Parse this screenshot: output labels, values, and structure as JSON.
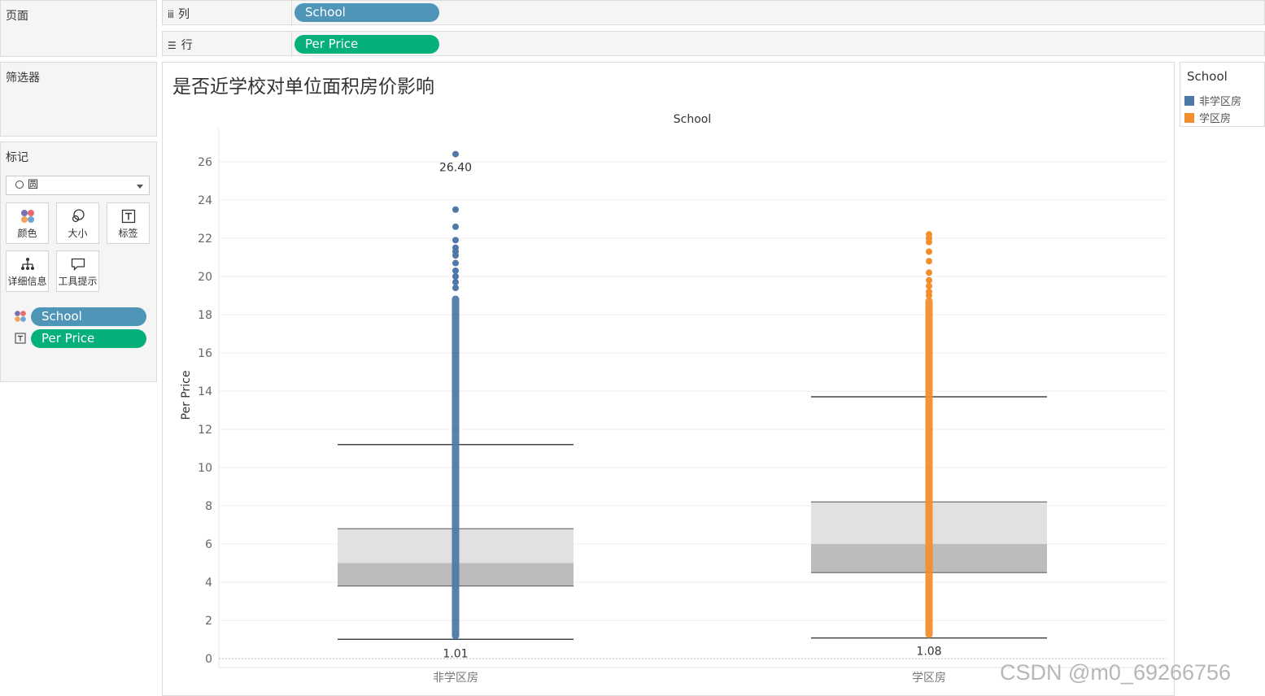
{
  "shelves": {
    "pages_label": "页面",
    "columns_label": "列",
    "columns_pill": "School",
    "rows_label": "行",
    "rows_pill": "Per Price",
    "filters_label": "筛选器"
  },
  "marks": {
    "title": "标记",
    "mark_type": "圆",
    "buttons": {
      "color": "颜色",
      "size": "大小",
      "label": "标签",
      "detail": "详细信息",
      "tooltip": "工具提示"
    },
    "fields": [
      "School",
      "Per Price"
    ]
  },
  "colors": {
    "non_school": "#4e79a7",
    "school": "#f28e2b",
    "pill_blue": "#4f95b7",
    "pill_green": "#06b07a"
  },
  "legend": {
    "title": "School",
    "items": [
      "非学区房",
      "学区房"
    ]
  },
  "chart_data": {
    "type": "scatter",
    "title": "是否近学校对单位面积房价影响",
    "column_header": "School",
    "ylabel": "Per Price",
    "ylim": [
      0,
      27.5
    ],
    "yticks": [
      0,
      2,
      4,
      6,
      8,
      10,
      12,
      14,
      16,
      18,
      20,
      22,
      24,
      26
    ],
    "categories": [
      "非学区房",
      "学区房"
    ],
    "boxplots": [
      {
        "name": "非学区房",
        "whisker_low": 1.01,
        "q1": 3.8,
        "median": 5.0,
        "q3": 6.8,
        "whisker_high": 11.2,
        "max": 26.4,
        "dense_range": [
          1.01,
          19.0
        ],
        "outliers": [
          23.5,
          22.6,
          21.9,
          21.5,
          21.3,
          21.1,
          20.7,
          20.3,
          20.0,
          19.7,
          19.4
        ],
        "labels": [
          "26.40",
          "1.01"
        ]
      },
      {
        "name": "学区房",
        "whisker_low": 1.08,
        "q1": 4.5,
        "median": 6.0,
        "q3": 8.2,
        "whisker_high": 13.7,
        "max": 22.2,
        "dense_range": [
          1.08,
          18.9
        ],
        "outliers": [
          22.0,
          21.8,
          21.3,
          20.8,
          20.2,
          19.8,
          19.5,
          19.2,
          19.0
        ],
        "labels": [
          "1.08"
        ]
      }
    ]
  },
  "watermark": "CSDN @m0_69266756"
}
